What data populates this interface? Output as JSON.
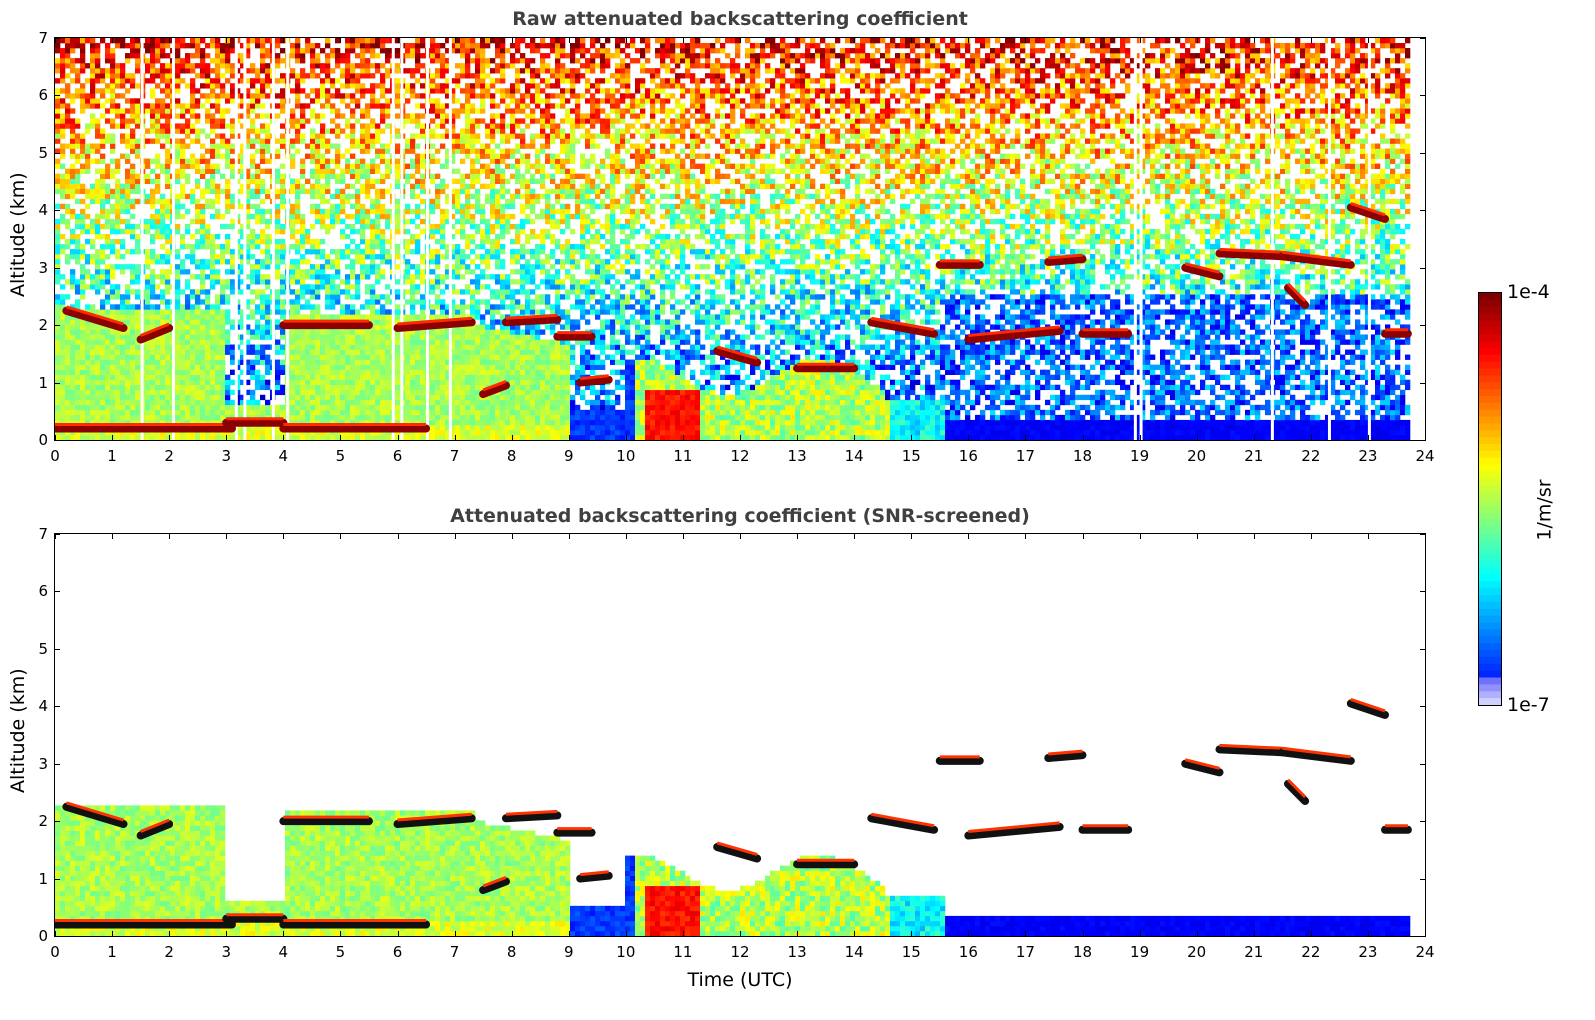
{
  "chart_data": [
    {
      "type": "heatmap",
      "title": "Raw attenuated backscattering coefficient",
      "xlabel": "",
      "ylabel": "Altitude (km)",
      "xlim": [
        0,
        24
      ],
      "ylim": [
        0,
        7
      ],
      "xticks": [
        "0",
        "1",
        "2",
        "3",
        "4",
        "5",
        "6",
        "7",
        "8",
        "9",
        "10",
        "11",
        "12",
        "13",
        "14",
        "15",
        "16",
        "17",
        "18",
        "19",
        "20",
        "21",
        "22",
        "23",
        "24"
      ],
      "yticks": [
        "0",
        "1",
        "2",
        "3",
        "4",
        "5",
        "6",
        "7"
      ],
      "screened": false,
      "cloud_layers": [
        {
          "t0": 0.2,
          "t1": 1.2,
          "alt0": 2.25,
          "alt1": 1.95
        },
        {
          "t0": 1.5,
          "t1": 2.0,
          "alt0": 1.75,
          "alt1": 1.95
        },
        {
          "t0": 4.0,
          "t1": 5.5,
          "alt0": 2.0,
          "alt1": 2.0
        },
        {
          "t0": 6.0,
          "t1": 7.3,
          "alt0": 1.95,
          "alt1": 2.05
        },
        {
          "t0": 7.9,
          "t1": 8.8,
          "alt0": 2.05,
          "alt1": 2.1
        },
        {
          "t0": 8.8,
          "t1": 9.4,
          "alt0": 1.8,
          "alt1": 1.8
        },
        {
          "t0": 9.2,
          "t1": 9.7,
          "alt0": 1.0,
          "alt1": 1.05
        },
        {
          "t0": 7.5,
          "t1": 7.9,
          "alt0": 0.8,
          "alt1": 0.95
        },
        {
          "t0": 11.6,
          "t1": 12.3,
          "alt0": 1.55,
          "alt1": 1.35
        },
        {
          "t0": 13.0,
          "t1": 14.0,
          "alt0": 1.25,
          "alt1": 1.25
        },
        {
          "t0": 14.3,
          "t1": 15.4,
          "alt0": 2.05,
          "alt1": 1.85
        },
        {
          "t0": 15.5,
          "t1": 16.2,
          "alt0": 3.05,
          "alt1": 3.05
        },
        {
          "t0": 16.0,
          "t1": 17.6,
          "alt0": 1.75,
          "alt1": 1.9
        },
        {
          "t0": 17.4,
          "t1": 18.0,
          "alt0": 3.1,
          "alt1": 3.15
        },
        {
          "t0": 18.0,
          "t1": 18.8,
          "alt0": 1.85,
          "alt1": 1.85
        },
        {
          "t0": 19.8,
          "t1": 20.4,
          "alt0": 3.0,
          "alt1": 2.85
        },
        {
          "t0": 20.4,
          "t1": 21.5,
          "alt0": 3.25,
          "alt1": 3.2
        },
        {
          "t0": 21.5,
          "t1": 22.7,
          "alt0": 3.2,
          "alt1": 3.05
        },
        {
          "t0": 21.6,
          "t1": 21.9,
          "alt0": 2.65,
          "alt1": 2.35
        },
        {
          "t0": 22.7,
          "t1": 23.3,
          "alt0": 4.05,
          "alt1": 3.85
        },
        {
          "t0": 23.3,
          "t1": 23.7,
          "alt0": 1.85,
          "alt1": 1.85
        },
        {
          "t0": 0.0,
          "t1": 3.1,
          "alt0": 0.2,
          "alt1": 0.2
        },
        {
          "t0": 3.0,
          "t1": 4.0,
          "alt0": 0.3,
          "alt1": 0.3
        },
        {
          "t0": 4.0,
          "t1": 6.5,
          "alt0": 0.2,
          "alt1": 0.2
        }
      ]
    },
    {
      "type": "heatmap",
      "title": "Attenuated backscattering coefficient (SNR-screened)",
      "xlabel": "Time (UTC)",
      "ylabel": "Altitude (km)",
      "xlim": [
        0,
        24
      ],
      "ylim": [
        0,
        7
      ],
      "xticks": [
        "0",
        "1",
        "2",
        "3",
        "4",
        "5",
        "6",
        "7",
        "8",
        "9",
        "10",
        "11",
        "12",
        "13",
        "14",
        "15",
        "16",
        "17",
        "18",
        "19",
        "20",
        "21",
        "22",
        "23",
        "24"
      ],
      "yticks": [
        "0",
        "1",
        "2",
        "3",
        "4",
        "5",
        "6",
        "7"
      ],
      "screened": true
    }
  ],
  "colorbar": {
    "max_label": "1e-4",
    "min_label": "1e-7",
    "unit": "1/m/sr",
    "colormap": "jet"
  }
}
